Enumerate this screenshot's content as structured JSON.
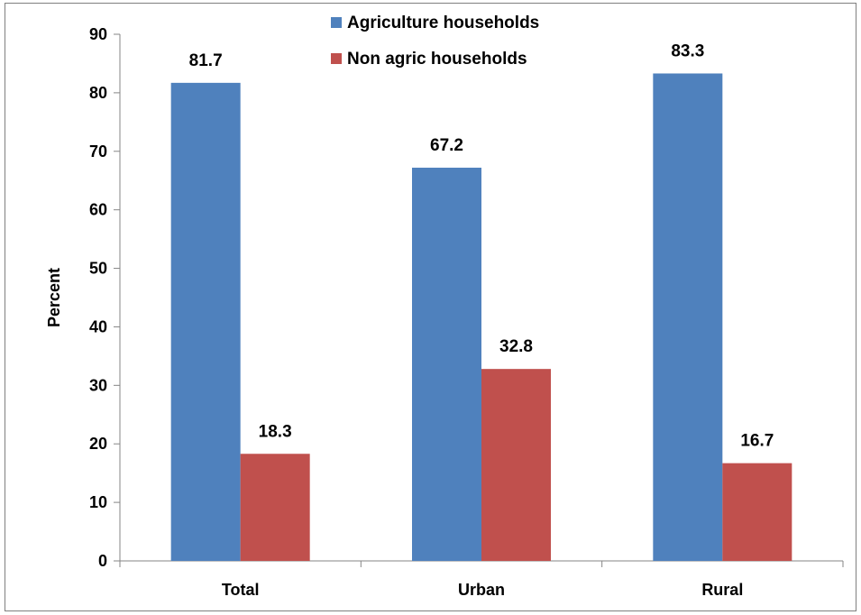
{
  "chart_data": {
    "type": "bar",
    "categories": [
      "Total",
      "Urban",
      "Rural"
    ],
    "series": [
      {
        "name": "Agriculture households",
        "values": [
          81.7,
          67.2,
          83.3
        ],
        "color": "#4f81bd"
      },
      {
        "name": "Non agric households",
        "values": [
          18.3,
          32.8,
          16.7
        ],
        "color": "#c0504d"
      }
    ],
    "data_labels": [
      [
        "81.7",
        "67.2",
        "83.3"
      ],
      [
        "18.3",
        "32.8",
        "16.7"
      ]
    ],
    "ylabel": "Percent",
    "xlabel": "",
    "ylim": [
      0,
      90
    ],
    "yticks": [
      0,
      10,
      20,
      30,
      40,
      50,
      60,
      70,
      80,
      90
    ],
    "grid": false,
    "legend_position": "top-center"
  }
}
